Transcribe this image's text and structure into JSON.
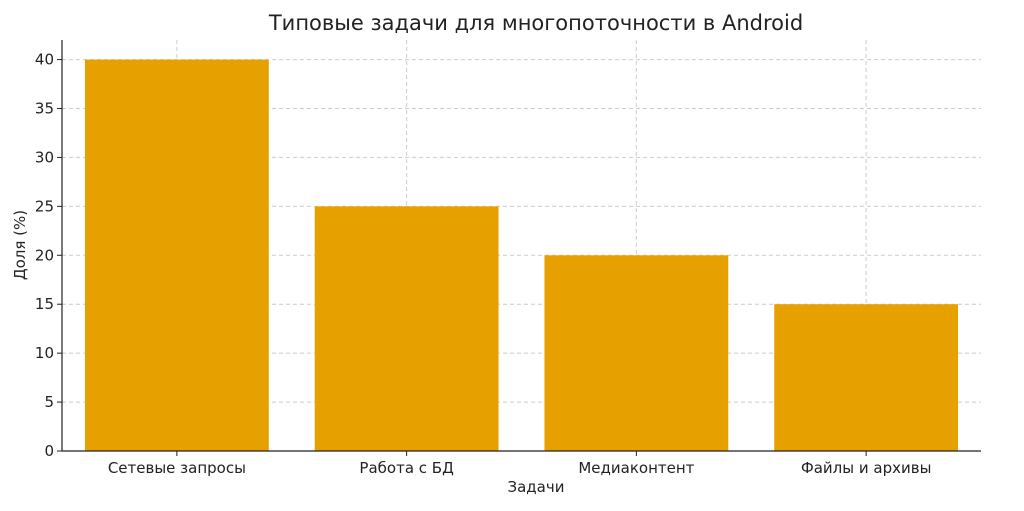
{
  "chart_data": {
    "type": "bar",
    "title": "Типовые задачи для многопоточности в Android",
    "xlabel": "Задачи",
    "ylabel": "Доля (%)",
    "categories": [
      "Сетевые запросы",
      "Работа с БД",
      "Медиаконтент",
      "Файлы и архивы"
    ],
    "values": [
      40,
      25,
      20,
      15
    ],
    "ylim": [
      0,
      42
    ],
    "yticks": [
      0,
      5,
      10,
      15,
      20,
      25,
      30,
      35,
      40
    ],
    "grid": true,
    "bar_color": "#e6a000"
  }
}
